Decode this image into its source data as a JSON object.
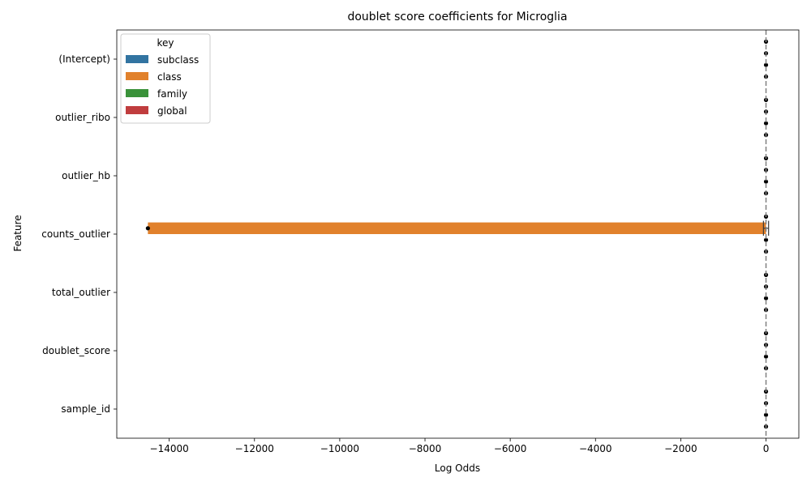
{
  "chart_data": {
    "type": "bar",
    "orientation": "horizontal",
    "title": "doublet score coefficients for Microglia",
    "xlabel": "Log Odds",
    "ylabel": "Feature",
    "categories": [
      "(Intercept)",
      "outlier_ribo",
      "outlier_hb",
      "counts_outlier",
      "total_outlier",
      "doublet_score",
      "sample_id"
    ],
    "xlim": [
      -15230,
      770
    ],
    "xticks": [
      -14000,
      -12000,
      -10000,
      -8000,
      -6000,
      -4000,
      -2000,
      0
    ],
    "xtick_labels": [
      "−14000",
      "−12000",
      "−10000",
      "−8000",
      "−6000",
      "−4000",
      "−2000",
      "0"
    ],
    "reference_line_x": 0,
    "legend": {
      "title": "key",
      "placement": "top-left"
    },
    "series": [
      {
        "name": "subclass",
        "color": "#3274a1",
        "values": [
          0,
          0,
          0,
          0,
          0,
          0,
          0
        ]
      },
      {
        "name": "class",
        "color": "#e1812c",
        "values": [
          0,
          0,
          0,
          -14500,
          0,
          0,
          0
        ]
      },
      {
        "name": "family",
        "color": "#3a923a",
        "values": [
          0,
          0,
          0,
          0,
          0,
          0,
          0
        ]
      },
      {
        "name": "global",
        "color": "#c03d3e",
        "values": [
          0,
          0,
          0,
          0,
          0,
          0,
          0
        ]
      }
    ],
    "error_bars": {
      "counts_outlier": {
        "series": "class",
        "low": -60,
        "high": 60
      }
    }
  }
}
